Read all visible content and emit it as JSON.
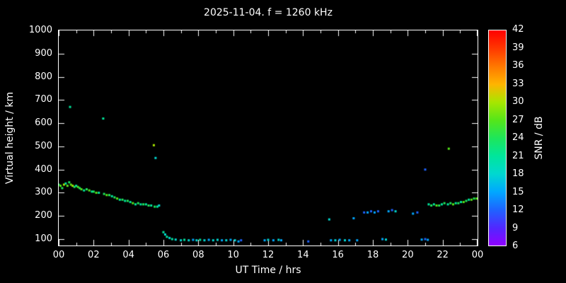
{
  "title": "2025-11-04. f = 1260 kHz",
  "x_axis": {
    "label": "UT Time / hrs",
    "ticks": [
      "00",
      "02",
      "04",
      "06",
      "08",
      "10",
      "12",
      "14",
      "16",
      "18",
      "20",
      "22",
      "00"
    ],
    "range": [
      0,
      24
    ]
  },
  "y_axis": {
    "label": "Virtual height / km",
    "ticks": [
      1000,
      900,
      800,
      700,
      600,
      500,
      400,
      300,
      200,
      100
    ],
    "range": [
      100,
      1000
    ]
  },
  "colorbar": {
    "label": "SNR / dB",
    "ticks": [
      42,
      39,
      36,
      33,
      30,
      27,
      24,
      21,
      18,
      15,
      12,
      9,
      6
    ],
    "min": 6,
    "max": 42,
    "stops": [
      {
        "v": 6,
        "c": "#9000ff"
      },
      {
        "v": 9,
        "c": "#5028ff"
      },
      {
        "v": 12,
        "c": "#1e64ff"
      },
      {
        "v": 15,
        "c": "#00a8ff"
      },
      {
        "v": 18,
        "c": "#00d8d0"
      },
      {
        "v": 21,
        "c": "#00e69b"
      },
      {
        "v": 24,
        "c": "#1ee65a"
      },
      {
        "v": 27,
        "c": "#55e619"
      },
      {
        "v": 30,
        "c": "#a8e600"
      },
      {
        "v": 33,
        "c": "#ffb400"
      },
      {
        "v": 36,
        "c": "#ff7800"
      },
      {
        "v": 39,
        "c": "#ff3700"
      },
      {
        "v": 42,
        "c": "#ff0000"
      }
    ]
  },
  "chart_data": {
    "type": "scatter",
    "title": "2025-11-04. f = 1260 kHz",
    "xlabel": "UT Time / hrs",
    "ylabel": "Virtual height / km",
    "xlim": [
      0,
      24
    ],
    "ylim": [
      100,
      1000
    ],
    "color_label": "SNR / dB",
    "color_lim": [
      6,
      42
    ],
    "grid": false,
    "points_format": "[ut_hours, virtual_height_km, snr_db]",
    "points": [
      [
        0.0,
        335,
        24
      ],
      [
        0.1,
        330,
        27
      ],
      [
        0.2,
        320,
        24
      ],
      [
        0.3,
        335,
        30
      ],
      [
        0.4,
        340,
        21
      ],
      [
        0.5,
        330,
        27
      ],
      [
        0.6,
        345,
        24
      ],
      [
        0.65,
        670,
        21
      ],
      [
        0.7,
        335,
        27
      ],
      [
        0.8,
        330,
        30
      ],
      [
        0.9,
        325,
        24
      ],
      [
        1.0,
        330,
        21
      ],
      [
        1.1,
        325,
        27
      ],
      [
        1.2,
        320,
        24
      ],
      [
        1.3,
        315,
        27
      ],
      [
        1.45,
        310,
        21
      ],
      [
        1.6,
        315,
        24
      ],
      [
        1.75,
        310,
        27
      ],
      [
        1.9,
        305,
        21
      ],
      [
        2.0,
        305,
        24
      ],
      [
        2.15,
        300,
        27
      ],
      [
        2.3,
        300,
        21
      ],
      [
        2.55,
        620,
        21
      ],
      [
        2.6,
        295,
        24
      ],
      [
        2.75,
        290,
        27
      ],
      [
        2.9,
        290,
        24
      ],
      [
        3.05,
        285,
        21
      ],
      [
        3.2,
        280,
        24
      ],
      [
        3.35,
        275,
        27
      ],
      [
        3.5,
        270,
        21
      ],
      [
        3.65,
        270,
        24
      ],
      [
        3.8,
        265,
        21
      ],
      [
        3.95,
        265,
        24
      ],
      [
        4.1,
        260,
        21
      ],
      [
        4.25,
        255,
        27
      ],
      [
        4.4,
        250,
        21
      ],
      [
        4.55,
        255,
        24
      ],
      [
        4.7,
        250,
        21
      ],
      [
        4.85,
        250,
        24
      ],
      [
        5.0,
        250,
        21
      ],
      [
        5.15,
        245,
        24
      ],
      [
        5.3,
        245,
        21
      ],
      [
        5.45,
        505,
        30
      ],
      [
        5.5,
        240,
        24
      ],
      [
        5.55,
        450,
        18
      ],
      [
        5.65,
        240,
        21
      ],
      [
        5.75,
        245,
        18
      ],
      [
        6.0,
        130,
        21
      ],
      [
        6.1,
        120,
        18
      ],
      [
        6.2,
        110,
        21
      ],
      [
        6.35,
        105,
        18
      ],
      [
        6.5,
        100,
        21
      ],
      [
        6.7,
        98,
        18
      ],
      [
        7.0,
        95,
        18
      ],
      [
        7.2,
        97,
        21
      ],
      [
        7.45,
        95,
        18
      ],
      [
        7.7,
        97,
        15
      ],
      [
        7.9,
        95,
        18
      ],
      [
        8.1,
        97,
        21
      ],
      [
        8.35,
        95,
        18
      ],
      [
        8.6,
        97,
        15
      ],
      [
        8.85,
        95,
        18
      ],
      [
        9.1,
        97,
        18
      ],
      [
        9.35,
        95,
        15
      ],
      [
        9.6,
        95,
        18
      ],
      [
        9.85,
        97,
        15
      ],
      [
        10.1,
        95,
        18
      ],
      [
        10.3,
        90,
        15
      ],
      [
        10.45,
        95,
        12
      ],
      [
        11.8,
        95,
        15
      ],
      [
        12.0,
        97,
        18
      ],
      [
        12.3,
        95,
        15
      ],
      [
        12.6,
        97,
        18
      ],
      [
        12.75,
        95,
        15
      ],
      [
        14.3,
        90,
        12
      ],
      [
        15.5,
        185,
        18
      ],
      [
        15.6,
        95,
        15
      ],
      [
        15.85,
        95,
        18
      ],
      [
        16.1,
        97,
        15
      ],
      [
        16.4,
        95,
        18
      ],
      [
        16.65,
        95,
        15
      ],
      [
        16.9,
        190,
        15
      ],
      [
        17.1,
        95,
        15
      ],
      [
        17.5,
        215,
        12
      ],
      [
        17.7,
        215,
        15
      ],
      [
        17.9,
        220,
        12
      ],
      [
        18.1,
        215,
        15
      ],
      [
        18.3,
        220,
        12
      ],
      [
        18.55,
        100,
        15
      ],
      [
        18.75,
        98,
        18
      ],
      [
        18.9,
        220,
        15
      ],
      [
        19.1,
        225,
        12
      ],
      [
        19.3,
        220,
        18
      ],
      [
        20.3,
        210,
        15
      ],
      [
        20.55,
        215,
        12
      ],
      [
        20.8,
        98,
        15
      ],
      [
        21.0,
        100,
        12
      ],
      [
        21.15,
        97,
        15
      ],
      [
        21.0,
        400,
        12
      ],
      [
        21.2,
        250,
        21
      ],
      [
        21.35,
        245,
        24
      ],
      [
        21.5,
        250,
        21
      ],
      [
        21.65,
        245,
        27
      ],
      [
        21.8,
        245,
        24
      ],
      [
        21.95,
        250,
        21
      ],
      [
        22.1,
        255,
        24
      ],
      [
        22.3,
        250,
        21
      ],
      [
        22.35,
        490,
        27
      ],
      [
        22.45,
        255,
        24
      ],
      [
        22.6,
        250,
        27
      ],
      [
        22.75,
        255,
        21
      ],
      [
        22.9,
        255,
        24
      ],
      [
        23.05,
        260,
        21
      ],
      [
        23.2,
        260,
        27
      ],
      [
        23.35,
        265,
        24
      ],
      [
        23.5,
        270,
        21
      ],
      [
        23.65,
        270,
        27
      ],
      [
        23.8,
        275,
        24
      ],
      [
        23.95,
        275,
        27
      ]
    ]
  }
}
